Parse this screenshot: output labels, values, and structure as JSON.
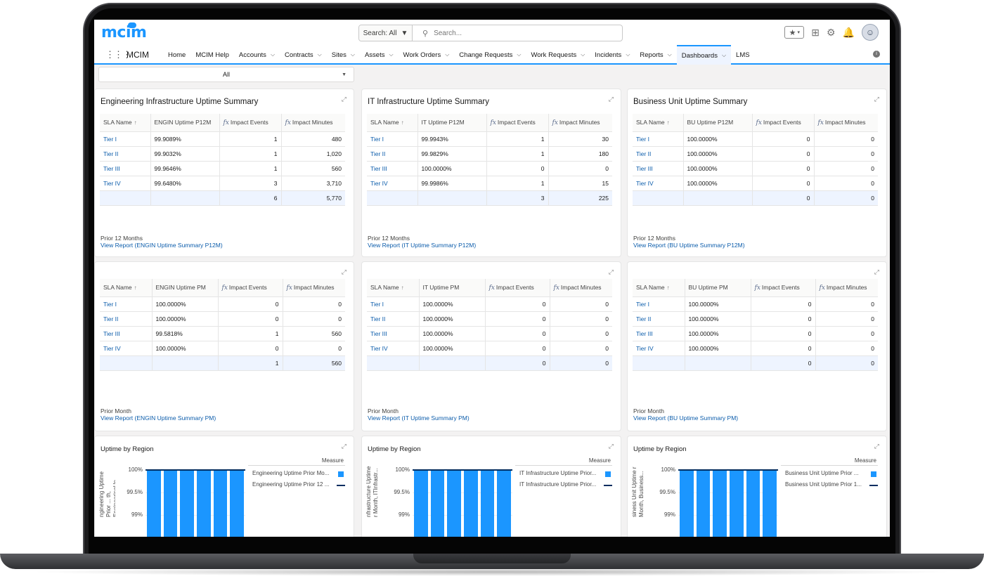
{
  "header": {
    "logo": "mcim",
    "search_scope": "Search: All",
    "search_placeholder": "Search..."
  },
  "nav": {
    "app_name": "MCIM",
    "tabs": [
      {
        "label": "Home",
        "has_menu": false
      },
      {
        "label": "MCIM Help",
        "has_menu": false
      },
      {
        "label": "Accounts",
        "has_menu": true
      },
      {
        "label": "Contracts",
        "has_menu": true
      },
      {
        "label": "Sites",
        "has_menu": true
      },
      {
        "label": "Assets",
        "has_menu": true
      },
      {
        "label": "Work Orders",
        "has_menu": true
      },
      {
        "label": "Change Requests",
        "has_menu": true
      },
      {
        "label": "Work Requests",
        "has_menu": true
      },
      {
        "label": "Incidents",
        "has_menu": true
      },
      {
        "label": "Reports",
        "has_menu": true
      },
      {
        "label": "Dashboards",
        "has_menu": true,
        "active": true
      },
      {
        "label": "LMS",
        "has_menu": false
      }
    ]
  },
  "filter": {
    "value": "All"
  },
  "cards_p12m": [
    {
      "title": "Engineering Infrastructure Uptime Summary",
      "columns": [
        "SLA Name",
        "ENGIN Uptime P12M",
        "Impact Events",
        "Impact Minutes"
      ],
      "rows": [
        [
          "Tier I",
          "99.9089%",
          "1",
          "480"
        ],
        [
          "Tier II",
          "99.9032%",
          "1",
          "1,020"
        ],
        [
          "Tier III",
          "99.9646%",
          "1",
          "560"
        ],
        [
          "Tier IV",
          "99.6480%",
          "3",
          "3,710"
        ]
      ],
      "totals": [
        "",
        "",
        "6",
        "5,770"
      ],
      "period": "Prior 12 Months",
      "link": "View Report (ENGIN Uptime Summary P12M)"
    },
    {
      "title": "IT Infrastructure Uptime Summary",
      "columns": [
        "SLA Name",
        "IT Uptime P12M",
        "Impact Events",
        "Impact Minutes"
      ],
      "rows": [
        [
          "Tier I",
          "99.9943%",
          "1",
          "30"
        ],
        [
          "Tier II",
          "99.9829%",
          "1",
          "180"
        ],
        [
          "Tier III",
          "100.0000%",
          "0",
          "0"
        ],
        [
          "Tier IV",
          "99.9986%",
          "1",
          "15"
        ]
      ],
      "totals": [
        "",
        "",
        "3",
        "225"
      ],
      "period": "Prior 12 Months",
      "link": "View Report (IT Uptime Summary P12M)"
    },
    {
      "title": "Business Unit Uptime Summary",
      "columns": [
        "SLA Name",
        "BU Uptime P12M",
        "Impact Events",
        "Impact Minutes"
      ],
      "rows": [
        [
          "Tier I",
          "100.0000%",
          "0",
          "0"
        ],
        [
          "Tier II",
          "100.0000%",
          "0",
          "0"
        ],
        [
          "Tier III",
          "100.0000%",
          "0",
          "0"
        ],
        [
          "Tier IV",
          "100.0000%",
          "0",
          "0"
        ]
      ],
      "totals": [
        "",
        "",
        "0",
        "0"
      ],
      "period": "Prior 12 Months",
      "link": "View Report (BU Uptime Summary P12M)"
    }
  ],
  "cards_pm": [
    {
      "columns": [
        "SLA Name",
        "ENGIN Uptime PM",
        "Impact Events",
        "Impact Minutes"
      ],
      "rows": [
        [
          "Tier I",
          "100.0000%",
          "0",
          "0"
        ],
        [
          "Tier II",
          "100.0000%",
          "0",
          "0"
        ],
        [
          "Tier III",
          "99.5818%",
          "1",
          "560"
        ],
        [
          "Tier IV",
          "100.0000%",
          "0",
          "0"
        ]
      ],
      "totals": [
        "",
        "",
        "1",
        "560"
      ],
      "period": "Prior Month",
      "link": "View Report (ENGIN Uptime Summary PM)"
    },
    {
      "columns": [
        "SLA Name",
        "IT Uptime PM",
        "Impact Events",
        "Impact Minutes"
      ],
      "rows": [
        [
          "Tier I",
          "100.0000%",
          "0",
          "0"
        ],
        [
          "Tier II",
          "100.0000%",
          "0",
          "0"
        ],
        [
          "Tier III",
          "100.0000%",
          "0",
          "0"
        ],
        [
          "Tier IV",
          "100.0000%",
          "0",
          "0"
        ]
      ],
      "totals": [
        "",
        "",
        "0",
        "0"
      ],
      "period": "Prior Month",
      "link": "View Report (IT Uptime Summary PM)"
    },
    {
      "columns": [
        "SLA Name",
        "BU Uptime PM",
        "Impact Events",
        "Impact Minutes"
      ],
      "rows": [
        [
          "Tier I",
          "100.0000%",
          "0",
          "0"
        ],
        [
          "Tier II",
          "100.0000%",
          "0",
          "0"
        ],
        [
          "Tier III",
          "100.0000%",
          "0",
          "0"
        ],
        [
          "Tier IV",
          "100.0000%",
          "0",
          "0"
        ]
      ],
      "totals": [
        "",
        "",
        "0",
        "0"
      ],
      "period": "Prior Month",
      "link": "View Report (BU Uptime Summary PM)"
    }
  ],
  "chart_data": [
    {
      "type": "bar",
      "title": "Uptime by Region",
      "ylabel": "ngineering Uptime Prior ... th, EngineeringUp...",
      "yticks": [
        "100%",
        "99.5%",
        "99%"
      ],
      "ylim": [
        99,
        100
      ],
      "legend_title": "Measure",
      "series": [
        {
          "name": "Engineering Uptime Prior Mo...",
          "kind": "bar",
          "color": "#1b96ff",
          "values": [
            100,
            100,
            100,
            100,
            100,
            100
          ]
        },
        {
          "name": "Engineering Uptime Prior 12 ...",
          "kind": "line",
          "color": "#032d60"
        }
      ]
    },
    {
      "type": "bar",
      "title": "Uptime by Region",
      "ylabel": "nfrastructure Uptime r Month, ITInfrastr...",
      "yticks": [
        "100%",
        "99.5%",
        "99%"
      ],
      "ylim": [
        99,
        100
      ],
      "legend_title": "Measure",
      "series": [
        {
          "name": "IT Infrastructure Uptime Prior...",
          "kind": "bar",
          "color": "#1b96ff",
          "values": [
            100,
            100,
            100,
            100,
            100,
            100
          ]
        },
        {
          "name": "IT Infrastructure Uptime Prior...",
          "kind": "line",
          "color": "#032d60"
        }
      ]
    },
    {
      "type": "bar",
      "title": "Uptime by Region",
      "ylabel": "siness Unit Uptime r Month, Business...",
      "yticks": [
        "100%",
        "99.5%",
        "99%"
      ],
      "ylim": [
        99,
        100
      ],
      "legend_title": "Measure",
      "series": [
        {
          "name": "Business Unit Uptime Prior ...",
          "kind": "bar",
          "color": "#1b96ff",
          "values": [
            100,
            100,
            100,
            100,
            100,
            100
          ]
        },
        {
          "name": "Business Unit Uptime Prior 1...",
          "kind": "line",
          "color": "#032d60"
        }
      ]
    }
  ]
}
